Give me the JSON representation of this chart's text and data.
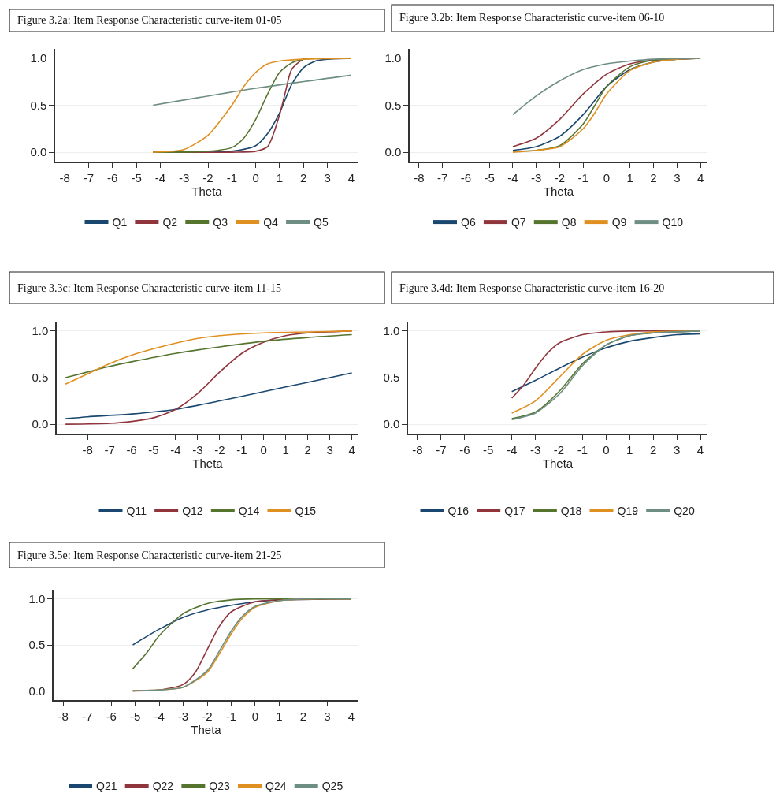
{
  "chart_data": [
    {
      "type": "line",
      "title": "Figure 3.2a: Item Response Characteristic curve-item 01-05",
      "xlabel": "Theta",
      "xlim": [
        -8.4,
        4.3
      ],
      "xticks": [
        -8,
        -7,
        -6,
        -5,
        -4,
        -3,
        -2,
        -1,
        0,
        1,
        2,
        3,
        4
      ],
      "ylim": [
        -0.1,
        1.1
      ],
      "yticks": [
        {
          "value": 0,
          "label": "0.0"
        },
        {
          "value": 0.5,
          "label": "0.5"
        },
        {
          "value": 1,
          "label": "1.0"
        }
      ],
      "grid": "y",
      "legend": "bottom",
      "series": [
        {
          "name": "Q1",
          "color": "#1a476f",
          "x": [
            -4.3,
            -2,
            -1,
            0,
            0.5,
            1,
            1.5,
            2,
            2.5,
            3,
            4
          ],
          "values": [
            0,
            0,
            0.01,
            0.07,
            0.2,
            0.42,
            0.72,
            0.9,
            0.97,
            0.99,
            1
          ]
        },
        {
          "name": "Q2",
          "color": "#90353b",
          "x": [
            -4.3,
            -1,
            0,
            0.5,
            1,
            1.25,
            1.5,
            2,
            2.5,
            4
          ],
          "values": [
            0,
            0,
            0.01,
            0.06,
            0.4,
            0.65,
            0.88,
            0.99,
            1,
            1
          ]
        },
        {
          "name": "Q3",
          "color": "#55752f",
          "x": [
            -4.3,
            -2,
            -1,
            -0.5,
            0,
            0.5,
            1,
            1.5,
            2,
            3,
            4
          ],
          "values": [
            0,
            0.01,
            0.05,
            0.15,
            0.35,
            0.62,
            0.85,
            0.95,
            0.99,
            1,
            1
          ]
        },
        {
          "name": "Q4",
          "color": "#e09020",
          "x": [
            -4.3,
            -3,
            -2,
            -1.5,
            -1,
            -0.5,
            0,
            0.5,
            1,
            2,
            4
          ],
          "values": [
            0,
            0.03,
            0.18,
            0.33,
            0.5,
            0.7,
            0.85,
            0.94,
            0.97,
            0.99,
            1
          ]
        },
        {
          "name": "Q5",
          "color": "#6e8e84",
          "x": [
            -4.3,
            0,
            4
          ],
          "values": [
            0.5,
            0.68,
            0.82
          ]
        }
      ]
    },
    {
      "type": "line",
      "title": "Figure 3.2b: Item Response Characteristic curve-item 06-10",
      "xlabel": "Theta",
      "xlim": [
        -8.4,
        4.3
      ],
      "xticks": [
        -8,
        -7,
        -6,
        -5,
        -4,
        -3,
        -2,
        -1,
        0,
        1,
        2,
        3,
        4
      ],
      "ylim": [
        -0.1,
        1.1
      ],
      "yticks": [
        {
          "value": 0,
          "label": "0.0"
        },
        {
          "value": 0.5,
          "label": "0.5"
        },
        {
          "value": 1,
          "label": "1.0"
        }
      ],
      "grid": "y",
      "legend": "bottom",
      "series": [
        {
          "name": "Q6",
          "color": "#1a476f",
          "x": [
            -4,
            -3,
            -2,
            -1,
            0,
            1,
            2,
            3,
            4
          ],
          "values": [
            0.02,
            0.06,
            0.17,
            0.4,
            0.7,
            0.88,
            0.96,
            0.99,
            1
          ]
        },
        {
          "name": "Q7",
          "color": "#90353b",
          "x": [
            -4,
            -3,
            -2,
            -1,
            0,
            1,
            2,
            3,
            4
          ],
          "values": [
            0.06,
            0.15,
            0.35,
            0.62,
            0.83,
            0.94,
            0.98,
            0.99,
            1
          ]
        },
        {
          "name": "Q8",
          "color": "#55752f",
          "x": [
            -4,
            -3,
            -2,
            -1,
            -0.5,
            0,
            1,
            2,
            4
          ],
          "values": [
            0.01,
            0.02,
            0.07,
            0.3,
            0.5,
            0.7,
            0.91,
            0.98,
            1
          ]
        },
        {
          "name": "Q9",
          "color": "#e09020",
          "x": [
            -4,
            -3,
            -2,
            -1,
            -0.5,
            0,
            1,
            2,
            3,
            4
          ],
          "values": [
            0,
            0.02,
            0.06,
            0.25,
            0.42,
            0.62,
            0.87,
            0.96,
            0.99,
            1
          ]
        },
        {
          "name": "Q10",
          "color": "#6e8e84",
          "x": [
            -4,
            -3,
            -2,
            -1,
            0,
            1,
            2,
            4
          ],
          "values": [
            0.4,
            0.6,
            0.76,
            0.88,
            0.94,
            0.97,
            0.99,
            1
          ]
        }
      ]
    },
    {
      "type": "line",
      "title": "Figure 3.3c: Item Response Characteristic curve-item 11-15",
      "xlabel": "Theta",
      "xlim": [
        -9.4,
        4.3
      ],
      "xticks": [
        -8,
        -7,
        -6,
        -5,
        -4,
        -3,
        -2,
        -1,
        0,
        1,
        2,
        3,
        4
      ],
      "ylim": [
        -0.1,
        1.1
      ],
      "yticks": [
        {
          "value": 0,
          "label": "0.0"
        },
        {
          "value": 0.5,
          "label": "0.5"
        },
        {
          "value": 1,
          "label": "1.0"
        }
      ],
      "grid": "y",
      "legend": "bottom",
      "series": [
        {
          "name": "Q11",
          "color": "#1a476f",
          "x": [
            -9,
            -8,
            -6,
            -4,
            -2,
            0,
            2,
            4
          ],
          "values": [
            0.06,
            0.08,
            0.11,
            0.16,
            0.25,
            0.35,
            0.45,
            0.55
          ]
        },
        {
          "name": "Q12",
          "color": "#90353b",
          "x": [
            -9,
            -7,
            -6,
            -5,
            -4,
            -3,
            -2,
            -1,
            0,
            1,
            2,
            4
          ],
          "values": [
            0,
            0.01,
            0.03,
            0.07,
            0.16,
            0.33,
            0.56,
            0.76,
            0.88,
            0.95,
            0.98,
            1
          ]
        },
        {
          "name": "Q14",
          "color": "#55752f",
          "x": [
            -9,
            -8,
            -7,
            -6,
            -4,
            -2,
            0,
            2,
            4
          ],
          "values": [
            0.5,
            0.56,
            0.62,
            0.67,
            0.76,
            0.83,
            0.89,
            0.93,
            0.96
          ]
        },
        {
          "name": "Q15",
          "color": "#e09020",
          "x": [
            -9,
            -8,
            -7,
            -6,
            -5,
            -4,
            -3,
            -2,
            0,
            2,
            4
          ],
          "values": [
            0.43,
            0.54,
            0.65,
            0.74,
            0.81,
            0.87,
            0.92,
            0.95,
            0.98,
            0.99,
            1
          ]
        }
      ]
    },
    {
      "type": "line",
      "title": "Figure 3.4d: Item Response Characteristic curve-item 16-20",
      "xlabel": "Theta",
      "xlim": [
        -8.4,
        4.3
      ],
      "xticks": [
        -8,
        -7,
        -6,
        -5,
        -4,
        -3,
        -2,
        -1,
        0,
        1,
        2,
        3,
        4
      ],
      "ylim": [
        -0.1,
        1.1
      ],
      "yticks": [
        {
          "value": 0,
          "label": "0.0"
        },
        {
          "value": 0.5,
          "label": "0.5"
        },
        {
          "value": 1,
          "label": "1.0"
        }
      ],
      "grid": "y",
      "legend": "bottom",
      "series": [
        {
          "name": "Q16",
          "color": "#1a476f",
          "x": [
            -4,
            -3,
            -2,
            -1,
            0,
            1,
            2,
            3,
            4
          ],
          "values": [
            0.35,
            0.47,
            0.6,
            0.72,
            0.82,
            0.89,
            0.93,
            0.96,
            0.97
          ]
        },
        {
          "name": "Q17",
          "color": "#90353b",
          "x": [
            -4,
            -3.5,
            -3,
            -2.5,
            -2,
            -1,
            0,
            1,
            4
          ],
          "values": [
            0.28,
            0.42,
            0.6,
            0.76,
            0.87,
            0.96,
            0.99,
            1,
            1
          ]
        },
        {
          "name": "Q18",
          "color": "#55752f",
          "x": [
            -4,
            -3,
            -2,
            -1.5,
            -1,
            0,
            1,
            2,
            4
          ],
          "values": [
            0.06,
            0.13,
            0.35,
            0.5,
            0.65,
            0.85,
            0.95,
            0.98,
            1
          ]
        },
        {
          "name": "Q19",
          "color": "#e09020",
          "x": [
            -4,
            -3,
            -2,
            -1,
            0,
            1,
            2,
            4
          ],
          "values": [
            0.12,
            0.25,
            0.5,
            0.75,
            0.9,
            0.96,
            0.99,
            1
          ]
        },
        {
          "name": "Q20",
          "color": "#6e8e84",
          "x": [
            -4,
            -3,
            -2,
            -1.5,
            -1,
            0,
            1,
            2,
            4
          ],
          "values": [
            0.05,
            0.12,
            0.32,
            0.47,
            0.63,
            0.85,
            0.95,
            0.98,
            1
          ]
        }
      ]
    },
    {
      "type": "line",
      "title": "Figure 3.5e: Item Response Characteristic curve-item 21-25",
      "xlabel": "Theta",
      "xlim": [
        -8.4,
        4.3
      ],
      "xticks": [
        -8,
        -7,
        -6,
        -5,
        -4,
        -3,
        -2,
        -1,
        0,
        1,
        2,
        3,
        4
      ],
      "ylim": [
        -0.1,
        1.1
      ],
      "yticks": [
        {
          "value": 0,
          "label": "0.0"
        },
        {
          "value": 0.5,
          "label": "0.5"
        },
        {
          "value": 1,
          "label": "1.0"
        }
      ],
      "grid": "y",
      "legend": "bottom",
      "series": [
        {
          "name": "Q21",
          "color": "#1a476f",
          "x": [
            -5.1,
            -4,
            -3,
            -2,
            -1,
            0,
            1,
            4
          ],
          "values": [
            0.5,
            0.67,
            0.8,
            0.88,
            0.93,
            0.97,
            0.99,
            1
          ]
        },
        {
          "name": "Q22",
          "color": "#90353b",
          "x": [
            -5.1,
            -4,
            -3,
            -2.5,
            -2,
            -1.5,
            -1,
            0,
            1,
            4
          ],
          "values": [
            0,
            0.01,
            0.07,
            0.2,
            0.45,
            0.7,
            0.86,
            0.97,
            0.99,
            1
          ]
        },
        {
          "name": "Q23",
          "color": "#55752f",
          "x": [
            -5.1,
            -4.5,
            -4,
            -3,
            -2,
            -1,
            0,
            4
          ],
          "values": [
            0.24,
            0.42,
            0.6,
            0.84,
            0.95,
            0.99,
            1,
            1
          ]
        },
        {
          "name": "Q24",
          "color": "#e09020",
          "x": [
            -5.1,
            -4,
            -3,
            -2,
            -1.5,
            -1,
            -0.5,
            0,
            1,
            2,
            4
          ],
          "values": [
            0,
            0.01,
            0.04,
            0.2,
            0.4,
            0.62,
            0.8,
            0.91,
            0.98,
            1,
            1
          ]
        },
        {
          "name": "Q25",
          "color": "#6e8e84",
          "x": [
            -5.1,
            -4,
            -3,
            -2,
            -1.5,
            -1,
            -0.5,
            0,
            1,
            2,
            4
          ],
          "values": [
            0,
            0.01,
            0.04,
            0.22,
            0.43,
            0.65,
            0.82,
            0.92,
            0.98,
            1,
            1
          ]
        }
      ]
    }
  ]
}
